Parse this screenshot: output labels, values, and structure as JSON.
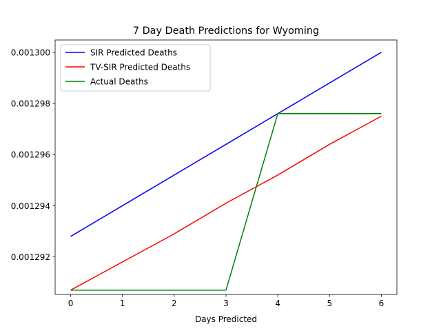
{
  "chart_data": {
    "type": "line",
    "title": "7 Day Death Predictions for Wyoming",
    "xlabel": "Days Predicted",
    "ylabel": "",
    "xlim": [
      -0.3,
      6.3
    ],
    "ylim": [
      0.00129053,
      0.00130048
    ],
    "x_ticks": [
      0,
      1,
      2,
      3,
      4,
      5,
      6
    ],
    "x_tick_labels": [
      "0",
      "1",
      "2",
      "3",
      "4",
      "5",
      "6"
    ],
    "y_ticks": [
      0.001292,
      0.001294,
      0.001296,
      0.001298,
      0.0013
    ],
    "y_tick_labels": [
      "0.001292",
      "0.001294",
      "0.001296",
      "0.001298",
      "0.001300"
    ],
    "grid": false,
    "legend_position": "upper-left",
    "series": [
      {
        "name": "SIR Predicted Deaths",
        "color": "#0000ff",
        "x": [
          0,
          1,
          2,
          3,
          4,
          5,
          6
        ],
        "values": [
          0.0012928,
          0.001294,
          0.0012952,
          0.0012964,
          0.0012976,
          0.0012988,
          0.0013
        ]
      },
      {
        "name": "TV-SIR Predicted Deaths",
        "color": "#ff0000",
        "x": [
          0,
          1,
          2,
          3,
          4,
          5,
          6
        ],
        "values": [
          0.0012907,
          0.0012918,
          0.0012929,
          0.0012941,
          0.0012952,
          0.0012964,
          0.0012975
        ]
      },
      {
        "name": "Actual Deaths",
        "color": "#008000",
        "x": [
          0,
          1,
          2,
          3,
          4,
          5,
          6
        ],
        "values": [
          0.0012907,
          0.0012907,
          0.0012907,
          0.0012907,
          0.0012976,
          0.0012976,
          0.0012976
        ]
      }
    ]
  }
}
